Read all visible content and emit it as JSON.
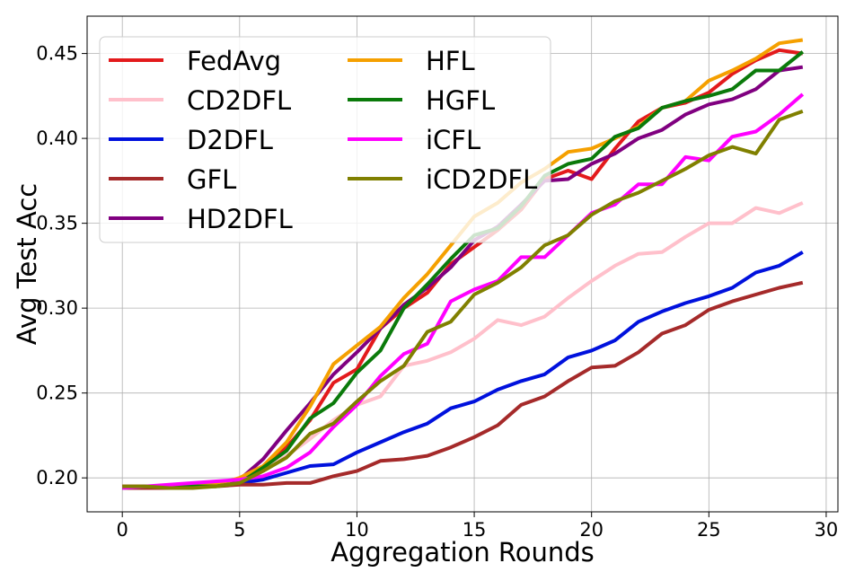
{
  "chart_data": {
    "type": "line",
    "title": "",
    "xlabel": "Aggregation Rounds",
    "ylabel": "Avg Test Acc",
    "xlim": [
      -1.5,
      30.5
    ],
    "ylim": [
      0.18,
      0.472
    ],
    "grid": true,
    "legend_position": "upper-left",
    "legend_columns": 2,
    "xticks": [
      0,
      5,
      10,
      15,
      20,
      25,
      30
    ],
    "yticks": [
      0.2,
      0.25,
      0.3,
      0.35,
      0.4,
      0.45
    ],
    "x": [
      0,
      1,
      2,
      3,
      4,
      5,
      6,
      7,
      8,
      9,
      10,
      11,
      12,
      13,
      14,
      15,
      16,
      17,
      18,
      19,
      20,
      21,
      22,
      23,
      24,
      25,
      26,
      27,
      28,
      29
    ],
    "series": [
      {
        "name": "FedAvg",
        "color": "#e31a1c",
        "values": [
          0.195,
          0.195,
          0.195,
          0.195,
          0.196,
          0.199,
          0.206,
          0.218,
          0.234,
          0.256,
          0.264,
          0.288,
          0.3,
          0.309,
          0.326,
          0.336,
          0.346,
          0.358,
          0.376,
          0.381,
          0.376,
          0.394,
          0.41,
          0.418,
          0.421,
          0.427,
          0.438,
          0.446,
          0.452,
          0.45
        ]
      },
      {
        "name": "CD2DFL",
        "color": "#ffc0cb",
        "values": [
          0.194,
          0.195,
          0.195,
          0.196,
          0.196,
          0.198,
          0.204,
          0.213,
          0.223,
          0.234,
          0.243,
          0.248,
          0.266,
          0.269,
          0.274,
          0.282,
          0.293,
          0.29,
          0.295,
          0.306,
          0.316,
          0.325,
          0.332,
          0.333,
          0.342,
          0.35,
          0.35,
          0.359,
          0.356,
          0.362
        ]
      },
      {
        "name": "D2DFL",
        "color": "#0011dd",
        "values": [
          0.194,
          0.195,
          0.195,
          0.196,
          0.196,
          0.197,
          0.199,
          0.203,
          0.207,
          0.208,
          0.215,
          0.221,
          0.227,
          0.232,
          0.241,
          0.245,
          0.252,
          0.257,
          0.261,
          0.271,
          0.275,
          0.281,
          0.292,
          0.298,
          0.303,
          0.307,
          0.312,
          0.321,
          0.325,
          0.333
        ]
      },
      {
        "name": "GFL",
        "color": "#a52a2a",
        "values": [
          0.194,
          0.194,
          0.194,
          0.195,
          0.195,
          0.196,
          0.196,
          0.197,
          0.197,
          0.201,
          0.204,
          0.21,
          0.211,
          0.213,
          0.218,
          0.224,
          0.231,
          0.243,
          0.248,
          0.257,
          0.265,
          0.266,
          0.274,
          0.285,
          0.29,
          0.299,
          0.304,
          0.308,
          0.312,
          0.315
        ]
      },
      {
        "name": "HD2DFL",
        "color": "#800080",
        "values": [
          0.194,
          0.195,
          0.195,
          0.195,
          0.196,
          0.199,
          0.211,
          0.228,
          0.244,
          0.261,
          0.274,
          0.288,
          0.302,
          0.312,
          0.324,
          0.34,
          0.348,
          0.361,
          0.375,
          0.376,
          0.385,
          0.391,
          0.4,
          0.405,
          0.414,
          0.42,
          0.423,
          0.429,
          0.44,
          0.442
        ]
      },
      {
        "name": "HFL",
        "color": "#f5a000",
        "values": [
          0.194,
          0.195,
          0.195,
          0.195,
          0.196,
          0.2,
          0.207,
          0.221,
          0.242,
          0.267,
          0.278,
          0.289,
          0.306,
          0.32,
          0.337,
          0.354,
          0.362,
          0.374,
          0.382,
          0.392,
          0.394,
          0.4,
          0.407,
          0.418,
          0.422,
          0.434,
          0.44,
          0.447,
          0.456,
          0.458
        ]
      },
      {
        "name": "HGFL",
        "color": "#0a7a0a",
        "values": [
          0.194,
          0.195,
          0.195,
          0.195,
          0.195,
          0.197,
          0.206,
          0.216,
          0.235,
          0.244,
          0.262,
          0.275,
          0.3,
          0.314,
          0.329,
          0.343,
          0.347,
          0.36,
          0.378,
          0.385,
          0.388,
          0.401,
          0.406,
          0.418,
          0.422,
          0.425,
          0.429,
          0.44,
          0.44,
          0.451
        ]
      },
      {
        "name": "iCFL",
        "color": "#ff00ff",
        "values": [
          0.194,
          0.195,
          0.196,
          0.197,
          0.198,
          0.199,
          0.201,
          0.206,
          0.215,
          0.23,
          0.243,
          0.26,
          0.273,
          0.279,
          0.304,
          0.311,
          0.316,
          0.33,
          0.33,
          0.343,
          0.356,
          0.361,
          0.373,
          0.373,
          0.389,
          0.387,
          0.401,
          0.404,
          0.414,
          0.426
        ]
      },
      {
        "name": "iCD2DFL",
        "color": "#808000",
        "values": [
          0.195,
          0.195,
          0.194,
          0.194,
          0.195,
          0.197,
          0.204,
          0.212,
          0.226,
          0.232,
          0.245,
          0.257,
          0.266,
          0.286,
          0.292,
          0.308,
          0.315,
          0.324,
          0.337,
          0.343,
          0.355,
          0.363,
          0.368,
          0.375,
          0.382,
          0.39,
          0.395,
          0.391,
          0.411,
          0.416
        ]
      }
    ]
  }
}
